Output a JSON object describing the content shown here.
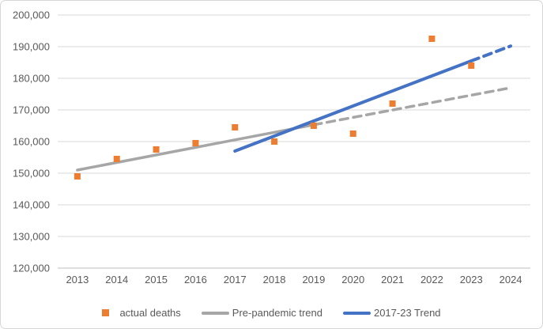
{
  "chart_data": {
    "type": "scatter",
    "title": "",
    "xlabel": "",
    "ylabel": "",
    "categories": [
      "2013",
      "2014",
      "2015",
      "2016",
      "2017",
      "2018",
      "2019",
      "2020",
      "2021",
      "2022",
      "2023",
      "2024"
    ],
    "ylim": [
      120000,
      200000
    ],
    "ytick_step": 10000,
    "yticks": [
      {
        "value": 200000,
        "label": "200,000"
      },
      {
        "value": 190000,
        "label": "190,000"
      },
      {
        "value": 180000,
        "label": "180,000"
      },
      {
        "value": 170000,
        "label": "170,000"
      },
      {
        "value": 160000,
        "label": "160,000"
      },
      {
        "value": 150000,
        "label": "150,000"
      },
      {
        "value": 140000,
        "label": "140,000"
      },
      {
        "value": 130000,
        "label": "130,000"
      },
      {
        "value": 120000,
        "label": "120,000"
      }
    ],
    "grid": true,
    "legend_position": "bottom",
    "colors": {
      "text": "#595959",
      "gridline": "#d9d9d9",
      "axis_line": "#bfbfbf"
    },
    "series": [
      {
        "name": "Pre-pandemic trend",
        "kind": "trendline",
        "color": "#a6a6a6",
        "segments": [
          {
            "style": "solid",
            "from": {
              "x": "2013",
              "y": 151000
            },
            "to": {
              "x": "2019",
              "y": 165300
            }
          },
          {
            "style": "dashed",
            "from": {
              "x": "2019",
              "y": 165300
            },
            "to": {
              "x": "2024",
              "y": 177000
            }
          }
        ]
      },
      {
        "name": "2017-23 Trend",
        "kind": "trendline",
        "color": "#4472c4",
        "segments": [
          {
            "style": "solid",
            "from": {
              "x": "2017",
              "y": 157000
            },
            "to": {
              "x": "2023",
              "y": 185500
            }
          },
          {
            "style": "dashed",
            "from": {
              "x": "2023",
              "y": 185500
            },
            "to": {
              "x": "2024",
              "y": 190200
            }
          }
        ]
      },
      {
        "name": "actual deaths",
        "kind": "scatter",
        "marker": "square",
        "color": "#ed7d31",
        "points": [
          {
            "x": "2013",
            "y": 149000
          },
          {
            "x": "2014",
            "y": 154500
          },
          {
            "x": "2015",
            "y": 157500
          },
          {
            "x": "2016",
            "y": 159500
          },
          {
            "x": "2017",
            "y": 164500
          },
          {
            "x": "2018",
            "y": 160000
          },
          {
            "x": "2019",
            "y": 165000
          },
          {
            "x": "2020",
            "y": 162500
          },
          {
            "x": "2021",
            "y": 172000
          },
          {
            "x": "2022",
            "y": 192500
          },
          {
            "x": "2023",
            "y": 184000
          }
        ]
      }
    ]
  },
  "legend": {
    "items": [
      {
        "label": "actual deaths",
        "marker": "square",
        "color": "#ed7d31"
      },
      {
        "label": "Pre-pandemic trend",
        "marker": "line",
        "color": "#a6a6a6"
      },
      {
        "label": "2017-23 Trend",
        "marker": "line",
        "color": "#4472c4"
      }
    ]
  }
}
